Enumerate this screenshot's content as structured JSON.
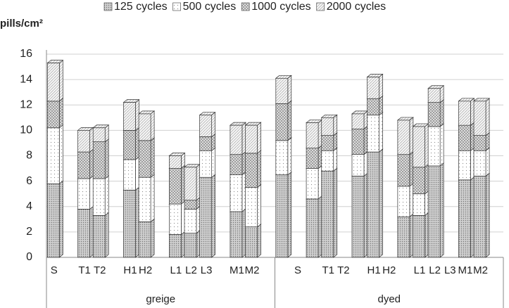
{
  "chart_data": {
    "type": "bar3d_stacked",
    "y_label": "pills/cm²",
    "categories": [
      "S",
      null,
      "T1",
      "T2",
      null,
      "H1",
      "H2",
      null,
      "L1",
      "L2",
      "L3",
      null,
      "M1",
      "M2",
      null,
      null,
      "S",
      null,
      "T1",
      "T2",
      null,
      "H1",
      "H2",
      null,
      "L1",
      "L2",
      "L3",
      "M1",
      "M2",
      null
    ],
    "groups": [
      "greige",
      "dyed"
    ],
    "series": [
      {
        "name": "125 cycles",
        "color": "#c8c8c8",
        "pattern": "dense-dots",
        "values": [
          5.8,
          null,
          3.8,
          3.3,
          null,
          5.3,
          2.8,
          null,
          1.8,
          1.9,
          6.3,
          null,
          3.6,
          2.4,
          null,
          6.5,
          null,
          4.6,
          6.8,
          null,
          6.4,
          8.3,
          null,
          3.2,
          3.3,
          7.2,
          null,
          6.1,
          6.4,
          null
        ]
      },
      {
        "name": "500 cycles",
        "color": "#ffffff",
        "pattern": "sparse-dots",
        "values": [
          4.4,
          null,
          2.4,
          2.9,
          null,
          2.4,
          3.5,
          null,
          2.4,
          1.9,
          2.1,
          null,
          2.9,
          3.1,
          null,
          2.7,
          null,
          2.4,
          1.6,
          null,
          1.7,
          2.9,
          null,
          2.4,
          1.7,
          3.1,
          null,
          2.3,
          2.0,
          null
        ]
      },
      {
        "name": "1000 cycles",
        "color": "#d8d8d8",
        "pattern": "cross-hatch",
        "values": [
          2.1,
          null,
          2.1,
          2.9,
          null,
          2.3,
          2.9,
          null,
          2.8,
          0.7,
          1.1,
          null,
          1.6,
          2.7,
          null,
          2.9,
          null,
          1.6,
          1.2,
          null,
          2.0,
          1.3,
          null,
          2.5,
          2.1,
          1.9,
          null,
          2.0,
          1.2,
          null
        ]
      },
      {
        "name": "2000 cycles",
        "color": "#eeeeee",
        "pattern": "diagonal",
        "values": [
          3.0,
          null,
          1.7,
          1.1,
          null,
          2.2,
          2.1,
          null,
          1.0,
          2.6,
          1.7,
          null,
          2.3,
          2.2,
          null,
          2.0,
          null,
          2.0,
          1.4,
          null,
          1.2,
          1.7,
          null,
          2.7,
          3.2,
          1.1,
          null,
          1.9,
          2.7,
          null
        ]
      }
    ],
    "ylim": [
      0,
      16
    ],
    "yticks": [
      0,
      2,
      4,
      6,
      8,
      10,
      12,
      14,
      16
    ],
    "grid": true,
    "legend": "top"
  }
}
